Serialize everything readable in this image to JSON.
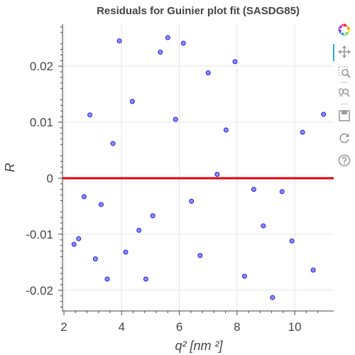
{
  "chart_data": {
    "type": "scatter",
    "title": "Residuals for Guinier plot fit (SASDG85)",
    "xlabel": "q² [nm ²]",
    "ylabel": "R",
    "xlim": [
      1.95,
      11.35
    ],
    "ylim": [
      -0.0237,
      0.0275
    ],
    "xticks": [
      2,
      4,
      6,
      8,
      10
    ],
    "yticks": [
      -0.02,
      -0.01,
      0,
      0.01,
      0.02
    ],
    "ytick_labels": [
      "-0.02",
      "-0.01",
      "0",
      "0.01",
      "0.02"
    ],
    "xtick_labels": [
      "2",
      "4",
      "6",
      "8",
      "10"
    ],
    "grid": true,
    "reference_line": {
      "y": 0,
      "color": "#e8000b"
    },
    "points": [
      {
        "x": 2.35,
        "y": -0.0118
      },
      {
        "x": 2.51,
        "y": -0.0108
      },
      {
        "x": 2.7,
        "y": -0.0033
      },
      {
        "x": 2.9,
        "y": 0.0113
      },
      {
        "x": 3.09,
        "y": -0.0144
      },
      {
        "x": 3.29,
        "y": -0.0047
      },
      {
        "x": 3.5,
        "y": -0.018
      },
      {
        "x": 3.7,
        "y": 0.0062
      },
      {
        "x": 3.92,
        "y": 0.0245
      },
      {
        "x": 4.14,
        "y": -0.0132
      },
      {
        "x": 4.37,
        "y": 0.0137
      },
      {
        "x": 4.6,
        "y": -0.0093
      },
      {
        "x": 4.84,
        "y": -0.018
      },
      {
        "x": 5.08,
        "y": -0.0067
      },
      {
        "x": 5.34,
        "y": 0.0225
      },
      {
        "x": 5.6,
        "y": 0.0251
      },
      {
        "x": 5.87,
        "y": 0.0105
      },
      {
        "x": 6.14,
        "y": 0.0241
      },
      {
        "x": 6.42,
        "y": -0.0041
      },
      {
        "x": 6.72,
        "y": -0.0138
      },
      {
        "x": 7.0,
        "y": 0.0188
      },
      {
        "x": 7.31,
        "y": 0.0007
      },
      {
        "x": 7.62,
        "y": 0.0086
      },
      {
        "x": 7.93,
        "y": 0.0208
      },
      {
        "x": 8.26,
        "y": -0.0175
      },
      {
        "x": 8.58,
        "y": -0.002
      },
      {
        "x": 8.91,
        "y": -0.0085
      },
      {
        "x": 9.23,
        "y": -0.0213
      },
      {
        "x": 9.56,
        "y": -0.0024
      },
      {
        "x": 9.9,
        "y": -0.0112
      },
      {
        "x": 10.27,
        "y": 0.0082
      },
      {
        "x": 10.64,
        "y": -0.0164
      },
      {
        "x": 11.0,
        "y": 0.0114
      }
    ]
  },
  "toolbar": {
    "tools": [
      {
        "name": "bokeh-logo",
        "icon": "bokeh-logo-icon"
      },
      {
        "name": "pan-tool",
        "icon": "pan-icon",
        "active": true
      },
      {
        "name": "box-zoom-tool",
        "icon": "box-zoom-icon"
      },
      {
        "name": "wheel-zoom-tool",
        "icon": "wheel-zoom-icon"
      },
      {
        "name": "save-tool",
        "icon": "save-icon"
      },
      {
        "name": "reset-tool",
        "icon": "reset-icon"
      },
      {
        "name": "help-tool",
        "icon": "help-icon"
      }
    ]
  },
  "colors": {
    "point_fill": "#8c8cff",
    "point_stroke": "#2323d8",
    "zero_line": "#e8000b",
    "grid": "#e5e5e5",
    "text": "#444444",
    "active_tool": "#26aae1"
  }
}
